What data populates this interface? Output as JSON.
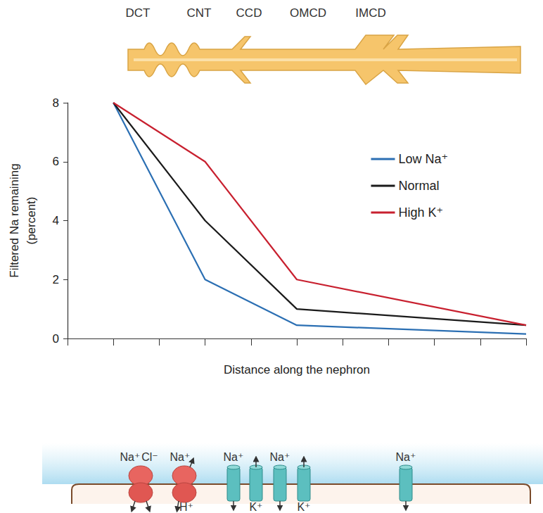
{
  "chart_data": {
    "type": "line",
    "x": [
      1,
      3,
      5,
      10
    ],
    "series": [
      {
        "name": "Low Na⁺",
        "color": "#2b6fb3",
        "values": [
          8,
          2,
          0.45,
          0.15
        ]
      },
      {
        "name": "Normal",
        "color": "#1a1a1a",
        "values": [
          8,
          4,
          1,
          0.45
        ]
      },
      {
        "name": "High K⁺",
        "color": "#c8202f",
        "values": [
          8,
          6,
          2,
          0.45
        ]
      }
    ],
    "x_label": "Distance along the nephron",
    "y_label": "Filtered Na remaining\n(percent)",
    "xlim": [
      0,
      10
    ],
    "xticks": [
      0,
      1,
      2,
      3,
      4,
      5,
      6,
      7,
      8,
      9,
      10
    ],
    "ylim": [
      0,
      8
    ],
    "yticks": [
      0,
      2,
      4,
      6,
      8
    ],
    "tick_labels": "y",
    "grid": false,
    "legend": "upper right"
  },
  "nephron_segments": [
    "DCT",
    "CNT",
    "CCD",
    "OMCD",
    "IMCD"
  ],
  "transporters": [
    {
      "kind": "cotransporter",
      "top": [
        "Na⁺",
        "Cl⁻"
      ],
      "bottom": []
    },
    {
      "kind": "exchanger",
      "top": [
        "Na⁺"
      ],
      "bottom": [
        "H⁺"
      ]
    },
    {
      "kind": "channel",
      "top": [
        "Na⁺"
      ],
      "bottom": []
    },
    {
      "kind": "channel",
      "top": [],
      "bottom": [
        "K⁺"
      ]
    },
    {
      "kind": "channel",
      "top": [
        "Na⁺"
      ],
      "bottom": []
    },
    {
      "kind": "channel",
      "top": [],
      "bottom": [
        "K⁺"
      ]
    },
    {
      "kind": "channel",
      "top": [
        "Na⁺"
      ],
      "bottom": []
    }
  ]
}
